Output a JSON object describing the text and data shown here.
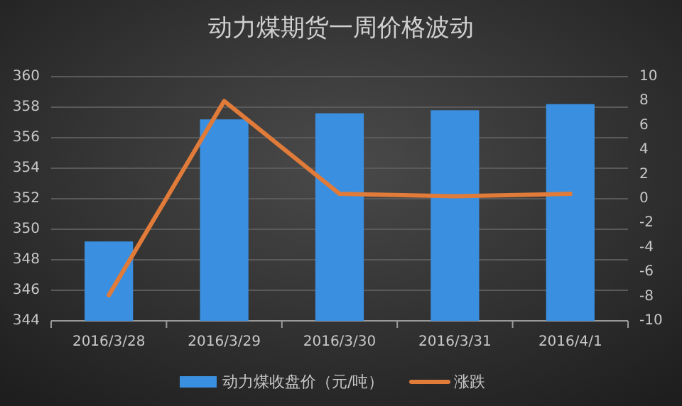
{
  "chart_data": {
    "type": "bar",
    "title": "动力煤期货一周价格波动",
    "categories": [
      "2016/3/28",
      "2016/3/29",
      "2016/3/30",
      "2016/3/31",
      "2016/4/1"
    ],
    "series": [
      {
        "name": "动力煤收盘价（元/吨）",
        "color": "#3a8fe0",
        "values": [
          349.2,
          357.2,
          357.6,
          357.8,
          358.2
        ]
      },
      {
        "name": "涨跌",
        "type": "line",
        "axis": "y2",
        "color": "#e07b39",
        "values": [
          -7.9,
          8.0,
          0.4,
          0.2,
          0.4
        ]
      }
    ],
    "ylim": [
      344,
      360
    ],
    "yticks": [
      344,
      346,
      348,
      350,
      352,
      354,
      356,
      358,
      360
    ],
    "y2lim": [
      -10,
      10
    ],
    "y2ticks": [
      -10,
      -8,
      -6,
      -4,
      -2,
      0,
      2,
      4,
      6,
      8,
      10
    ],
    "grid": "y",
    "legend": "bottom"
  }
}
